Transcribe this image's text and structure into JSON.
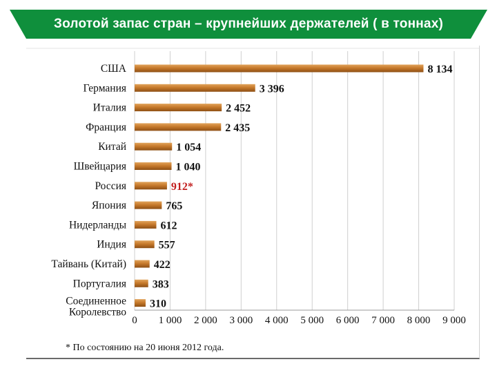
{
  "title": "Золотой запас стран – крупнейших держателей ( в тоннах)",
  "colors": {
    "banner": "#0f8f3c",
    "bar": "#c77a2c",
    "bar_highlight": "#e1a45c",
    "label": "#111111",
    "highlight_label": "#c21f1f",
    "grid": "#cfcfcf"
  },
  "chart_data": {
    "type": "bar",
    "orientation": "horizontal",
    "categories": [
      "США",
      "Германия",
      "Италия",
      "Франция",
      "Китай",
      "Швейцария",
      "Россия",
      "Япония",
      "Нидерланды",
      "Индия",
      "Тайвань (Китай)",
      "Португалия",
      "Соединенное Королевство"
    ],
    "values": [
      8134,
      3396,
      2452,
      2435,
      1054,
      1040,
      912,
      765,
      612,
      557,
      422,
      383,
      310
    ],
    "value_labels": [
      "8 134",
      "3 396",
      "2 452",
      "2 435",
      "1 054",
      "1 040",
      "912*",
      "765",
      "612",
      "557",
      "422",
      "383",
      "310"
    ],
    "highlight": [
      "Россия"
    ],
    "xlim": [
      0,
      9000
    ],
    "xticks": [
      0,
      1000,
      2000,
      3000,
      4000,
      5000,
      6000,
      7000,
      8000,
      9000
    ],
    "xtick_labels": [
      "0",
      "1 000",
      "2 000",
      "3 000",
      "4 000",
      "5 000",
      "6 000",
      "7 000",
      "8 000",
      "9 000"
    ],
    "grid": true,
    "footnote": "* По состоянию на 20 июня 2012 года."
  }
}
